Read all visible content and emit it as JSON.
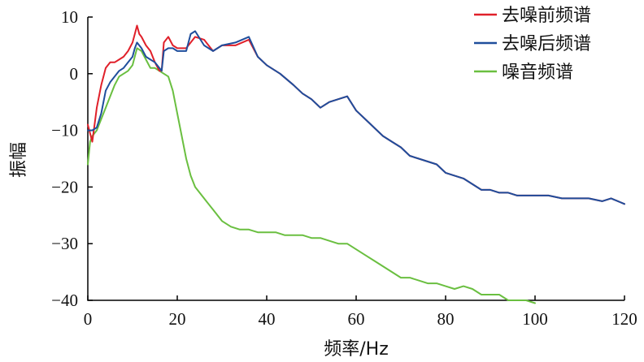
{
  "chart_data": {
    "type": "line",
    "xlabel": "频率/Hz",
    "ylabel": "振幅",
    "xlim": [
      0,
      120
    ],
    "ylim": [
      -40,
      10
    ],
    "xticks": [
      0,
      20,
      40,
      60,
      80,
      100,
      120
    ],
    "yticks": [
      10,
      0,
      -10,
      -20,
      -30,
      -40
    ],
    "xtick_labels": [
      "0",
      "20",
      "40",
      "60",
      "80",
      "100",
      "120"
    ],
    "ytick_labels": [
      "10",
      "0",
      "−10",
      "−20",
      "−30",
      "−40"
    ],
    "grid": false,
    "legend_position": "top-right",
    "series": [
      {
        "name": "去噪前频谱",
        "color": "#e0202a",
        "x": [
          0,
          1,
          1.5,
          2,
          3,
          4,
          5,
          6,
          7,
          8,
          9,
          10,
          10.5,
          11,
          11.5,
          12,
          13,
          14,
          15,
          16,
          16.5,
          17,
          18,
          19,
          20,
          22,
          24,
          26,
          28,
          30,
          33,
          36,
          38,
          40,
          43,
          46,
          48,
          50,
          52,
          54,
          56,
          58,
          60,
          62,
          64,
          66,
          68,
          70,
          72,
          74,
          76,
          78,
          80,
          82,
          84,
          86,
          88,
          90,
          92,
          94,
          96,
          98,
          100,
          103,
          106,
          109,
          112,
          115,
          117,
          120
        ],
        "y": [
          -9,
          -12,
          -9,
          -6,
          -2,
          1,
          2,
          2,
          2.5,
          3,
          4,
          5.5,
          7,
          8.5,
          7,
          6.5,
          5,
          4,
          2,
          0.5,
          0.5,
          5.5,
          6.5,
          5,
          4.5,
          4.5,
          6.5,
          6,
          4,
          5,
          5,
          6,
          3,
          1.5,
          0,
          -2,
          -3.5,
          -4.5,
          -6,
          -5,
          -4.5,
          -4,
          -6.5,
          -8,
          -9.5,
          -11,
          -12,
          -13,
          -14.5,
          -15,
          -15.5,
          -16,
          -17.5,
          -18,
          -18.5,
          -19.5,
          -20.5,
          -20.5,
          -21,
          -21,
          -21.5,
          -21.5,
          -21.5,
          -21.5,
          -22,
          -22,
          -22,
          -22.5,
          -22,
          -23
        ]
      },
      {
        "name": "去噪后频谱",
        "color": "#1f4e9c",
        "x": [
          0,
          1,
          2,
          3,
          4,
          5,
          6,
          7,
          8,
          9,
          10,
          10.5,
          11,
          12,
          13,
          14,
          15,
          16,
          16.5,
          17,
          18,
          19,
          20,
          22,
          23,
          24,
          26,
          28,
          30,
          33,
          36,
          38,
          40,
          43,
          46,
          48,
          50,
          52,
          54,
          56,
          58,
          60,
          62,
          64,
          66,
          68,
          70,
          72,
          74,
          76,
          78,
          80,
          82,
          84,
          86,
          88,
          90,
          92,
          94,
          96,
          98,
          100,
          103,
          106,
          109,
          112,
          115,
          117,
          120
        ],
        "y": [
          -10,
          -10,
          -9.5,
          -7,
          -3,
          -1.5,
          -0.5,
          0.5,
          1,
          2,
          3,
          4.5,
          5.5,
          4.5,
          3,
          2.5,
          2,
          1,
          0.5,
          4,
          4.5,
          4.5,
          4,
          4,
          7,
          7.5,
          5,
          4,
          5,
          5.5,
          6.5,
          3,
          1.5,
          0,
          -2,
          -3.5,
          -4.5,
          -6,
          -5,
          -4.5,
          -4,
          -6.5,
          -8,
          -9.5,
          -11,
          -12,
          -13,
          -14.5,
          -15,
          -15.5,
          -16,
          -17.5,
          -18,
          -18.5,
          -19.5,
          -20.5,
          -20.5,
          -21,
          -21,
          -21.5,
          -21.5,
          -21.5,
          -21.5,
          -22,
          -22,
          -22,
          -22.5,
          -22,
          -23
        ]
      },
      {
        "name": "噪音频谱",
        "color": "#6abf40",
        "x": [
          0,
          0.5,
          1,
          2,
          3,
          4,
          5,
          6,
          7,
          8,
          9,
          10,
          11,
          12,
          13,
          14,
          15,
          16,
          17,
          18,
          19,
          20,
          21,
          22,
          23,
          24,
          26,
          28,
          30,
          32,
          34,
          36,
          38,
          40,
          42,
          44,
          46,
          48,
          50,
          52,
          54,
          56,
          58,
          60,
          62,
          64,
          66,
          68,
          70,
          72,
          74,
          76,
          78,
          80,
          82,
          84,
          86,
          88,
          90,
          92,
          94,
          96,
          98,
          100
        ],
        "y": [
          -16,
          -12,
          -11,
          -10,
          -8,
          -6,
          -4,
          -2,
          -0.5,
          0,
          0.5,
          1.5,
          4.5,
          4,
          2.5,
          1,
          1,
          0.5,
          0,
          -0.5,
          -3,
          -7,
          -11,
          -15,
          -18,
          -20,
          -22,
          -24,
          -26,
          -27,
          -27.5,
          -27.5,
          -28,
          -28,
          -28,
          -28.5,
          -28.5,
          -28.5,
          -29,
          -29,
          -29.5,
          -30,
          -30,
          -31,
          -32,
          -33,
          -34,
          -35,
          -36,
          -36,
          -36.5,
          -37,
          -37,
          -37.5,
          -38,
          -37.5,
          -38,
          -39,
          -39,
          -39,
          -40,
          -40,
          -40,
          -40.5
        ]
      }
    ]
  }
}
